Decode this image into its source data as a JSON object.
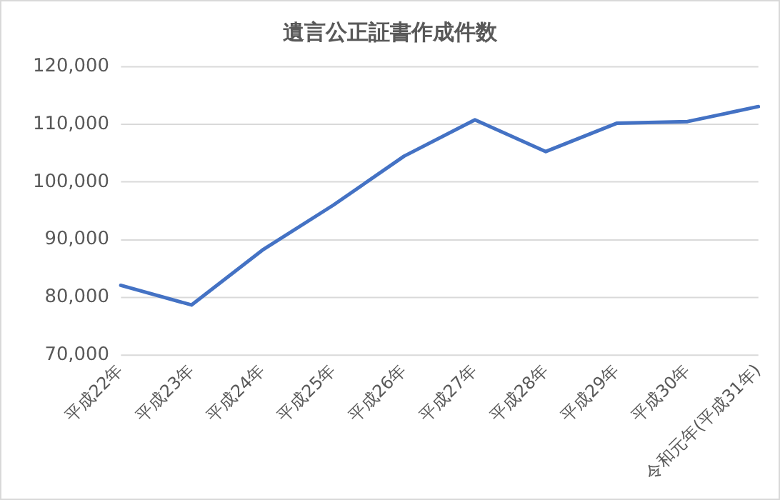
{
  "chart_data": {
    "type": "line",
    "title": "遺言公正証書作成件数",
    "categories": [
      "平成22年",
      "平成23年",
      "平成24年",
      "平成25年",
      "平成26年",
      "平成27年",
      "平成28年",
      "平成29年",
      "平成30年",
      "令和元年(平成31年)"
    ],
    "series": [
      {
        "color": "#4472c4",
        "values": [
          82100,
          78700,
          88200,
          96000,
          104500,
          110800,
          105300,
          110200,
          110500,
          113100
        ]
      }
    ],
    "ylim": [
      70000,
      120000
    ],
    "yticks": [
      {
        "value": 70000,
        "label": "70,000"
      },
      {
        "value": 80000,
        "label": "80,000"
      },
      {
        "value": 90000,
        "label": "90,000"
      },
      {
        "value": 100000,
        "label": "100,000"
      },
      {
        "value": 110000,
        "label": "110,000"
      },
      {
        "value": 120000,
        "label": "120,000"
      }
    ],
    "grid": "y",
    "legend": false,
    "marker": "none",
    "line_style": "solid"
  }
}
